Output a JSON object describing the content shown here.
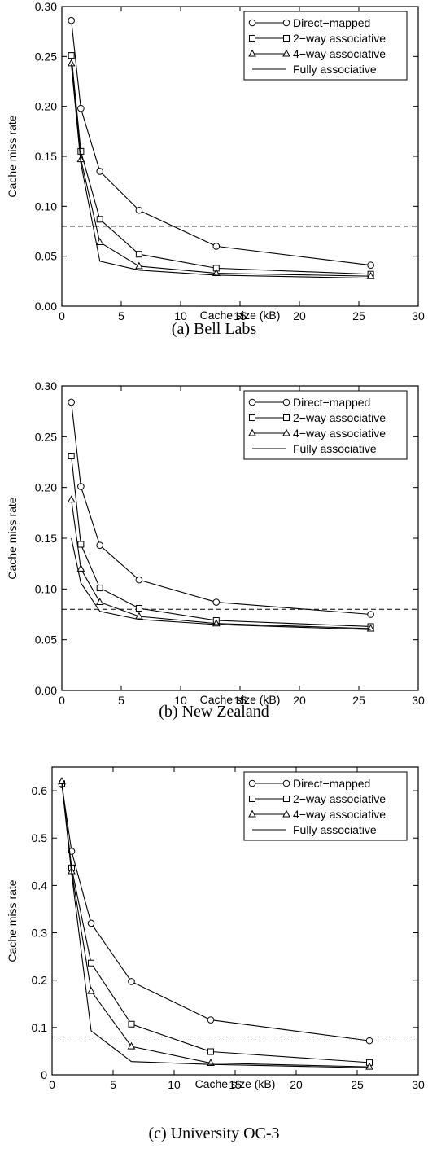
{
  "chart_data": [
    {
      "type": "line",
      "caption": "(a) Bell Labs",
      "xlabel": "Cache size (kB)",
      "ylabel": "Cache miss rate",
      "xlim": [
        0,
        30
      ],
      "ylim": [
        0,
        0.3
      ],
      "xticks": [
        "0",
        "5",
        "10",
        "15",
        "20",
        "25",
        "30"
      ],
      "yticks": [
        "0.00",
        "0.05",
        "0.10",
        "0.15",
        "0.20",
        "0.25",
        "0.30"
      ],
      "reference_line": 0.08,
      "legend_position": "top-right",
      "series": [
        {
          "name": "Direct−mapped",
          "marker": "circle",
          "x": [
            0.8,
            1.6,
            3.2,
            6.5,
            13,
            26
          ],
          "values": [
            0.286,
            0.198,
            0.135,
            0.096,
            0.06,
            0.041
          ]
        },
        {
          "name": "2−way associative",
          "marker": "square",
          "x": [
            0.8,
            1.6,
            3.2,
            6.5,
            13,
            26
          ],
          "values": [
            0.251,
            0.155,
            0.087,
            0.052,
            0.038,
            0.032
          ]
        },
        {
          "name": "4−way associative",
          "marker": "triangle",
          "x": [
            0.8,
            1.6,
            3.2,
            6.5,
            13,
            26
          ],
          "values": [
            0.243,
            0.147,
            0.064,
            0.04,
            0.033,
            0.03
          ]
        },
        {
          "name": "Fully associative",
          "marker": "none",
          "x": [
            0.8,
            1.6,
            3.2,
            6.5,
            13,
            26
          ],
          "values": [
            0.242,
            0.143,
            0.045,
            0.036,
            0.031,
            0.028
          ]
        }
      ]
    },
    {
      "type": "line",
      "caption": "(b) New Zealand",
      "xlabel": "Cache size (kB)",
      "ylabel": "Cache miss rate",
      "xlim": [
        0,
        30
      ],
      "ylim": [
        0,
        0.3
      ],
      "xticks": [
        "0",
        "5",
        "10",
        "15",
        "20",
        "25",
        "30"
      ],
      "yticks": [
        "0.00",
        "0.05",
        "0.10",
        "0.15",
        "0.20",
        "0.25",
        "0.30"
      ],
      "reference_line": 0.08,
      "legend_position": "top-right",
      "series": [
        {
          "name": "Direct−mapped",
          "marker": "circle",
          "x": [
            0.8,
            1.6,
            3.2,
            6.5,
            13,
            26
          ],
          "values": [
            0.284,
            0.201,
            0.143,
            0.109,
            0.087,
            0.075
          ]
        },
        {
          "name": "2−way associative",
          "marker": "square",
          "x": [
            0.8,
            1.6,
            3.2,
            6.5,
            13,
            26
          ],
          "values": [
            0.231,
            0.144,
            0.101,
            0.081,
            0.069,
            0.063
          ]
        },
        {
          "name": "4−way associative",
          "marker": "triangle",
          "x": [
            0.8,
            1.6,
            3.2,
            6.5,
            13,
            26
          ],
          "values": [
            0.188,
            0.12,
            0.087,
            0.073,
            0.066,
            0.061
          ]
        },
        {
          "name": "Fully associative",
          "marker": "none",
          "x": [
            0.8,
            1.6,
            3.2,
            6.5,
            13,
            26
          ],
          "values": [
            0.15,
            0.106,
            0.078,
            0.07,
            0.065,
            0.06
          ]
        }
      ]
    },
    {
      "type": "line",
      "caption": "(c) University OC-3",
      "xlabel": "Cache size (kB)",
      "ylabel": "Cache miss rate",
      "xlim": [
        0,
        30
      ],
      "ylim": [
        0,
        0.65
      ],
      "xticks": [
        "0",
        "5",
        "10",
        "15",
        "20",
        "25",
        "30"
      ],
      "yticks": [
        "0",
        "0.1",
        "0.2",
        "0.3",
        "0.4",
        "0.5",
        "0.6"
      ],
      "reference_line": 0.08,
      "legend_position": "top-right",
      "series": [
        {
          "name": "Direct−mapped",
          "marker": "circle",
          "x": [
            0.8,
            1.6,
            3.2,
            6.5,
            13,
            26
          ],
          "values": [
            0.613,
            0.472,
            0.32,
            0.197,
            0.116,
            0.072
          ]
        },
        {
          "name": "2−way associative",
          "marker": "square",
          "x": [
            0.8,
            1.6,
            3.2,
            6.5,
            13,
            26
          ],
          "values": [
            0.615,
            0.437,
            0.236,
            0.107,
            0.049,
            0.026
          ]
        },
        {
          "name": "4−way associative",
          "marker": "triangle",
          "x": [
            0.8,
            1.6,
            3.2,
            6.5,
            13,
            26
          ],
          "values": [
            0.62,
            0.43,
            0.177,
            0.06,
            0.025,
            0.017
          ]
        },
        {
          "name": "Fully associative",
          "marker": "none",
          "x": [
            0.8,
            1.6,
            3.2,
            6.5,
            13,
            26
          ],
          "values": [
            0.616,
            0.425,
            0.093,
            0.028,
            0.022,
            0.015
          ]
        }
      ]
    }
  ]
}
